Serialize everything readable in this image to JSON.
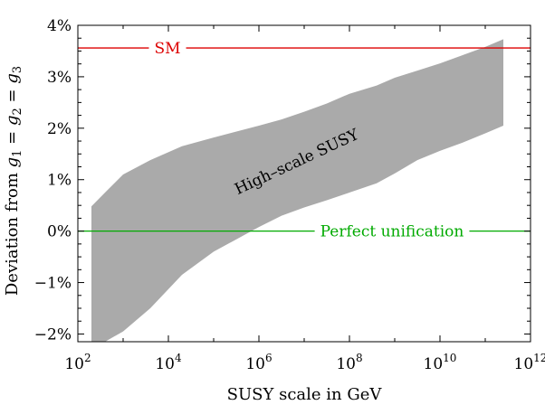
{
  "chart_data": {
    "type": "area",
    "title": "",
    "xlabel": "SUSY scale in GeV",
    "ylabel_text": "Deviation from ",
    "ylabel_math": {
      "g1": "g",
      "s1": "1",
      "eq1": " = ",
      "g2": "g",
      "s2": "2",
      "eq2": " = ",
      "g3": "g",
      "s3": "3"
    },
    "x_scale": "log10",
    "xlim_log10": [
      2,
      12
    ],
    "ylim": [
      -2.15,
      4.0
    ],
    "x_tick_labels": [
      {
        "log10": 2,
        "base": "10",
        "exp": "2"
      },
      {
        "log10": 4,
        "base": "10",
        "exp": "4"
      },
      {
        "log10": 6,
        "base": "10",
        "exp": "6"
      },
      {
        "log10": 8,
        "base": "10",
        "exp": "8"
      },
      {
        "log10": 10,
        "base": "10",
        "exp": "10"
      },
      {
        "log10": 12,
        "base": "10",
        "exp": "12"
      }
    ],
    "y_ticks": [
      -2,
      -1,
      0,
      1,
      2,
      3,
      4
    ],
    "y_tick_labels": [
      "−2%",
      "−1%",
      "0%",
      "1%",
      "2%",
      "3%",
      "4%"
    ],
    "band": {
      "name": "High–scale SUSY",
      "color": "#aaaaaa",
      "x_log10": [
        2.3,
        2.6,
        3.0,
        3.6,
        4.3,
        5.0,
        6.0,
        6.5,
        7.0,
        7.5,
        8.0,
        8.6,
        9.0,
        9.5,
        10.0,
        10.5,
        11.0,
        11.4
      ],
      "upper": [
        0.48,
        0.75,
        1.1,
        1.38,
        1.65,
        1.82,
        2.05,
        2.17,
        2.32,
        2.48,
        2.67,
        2.83,
        2.98,
        3.12,
        3.26,
        3.42,
        3.58,
        3.73
      ],
      "lower": [
        -2.15,
        -2.15,
        -1.95,
        -1.5,
        -0.85,
        -0.4,
        0.08,
        0.3,
        0.46,
        0.6,
        0.75,
        0.93,
        1.12,
        1.38,
        1.56,
        1.72,
        1.9,
        2.05
      ]
    },
    "series": [
      {
        "name": "SM",
        "y": 3.56,
        "color": "#dd0000"
      },
      {
        "name": "Perfect unification",
        "y": 0.0,
        "color": "#00aa00"
      }
    ]
  }
}
